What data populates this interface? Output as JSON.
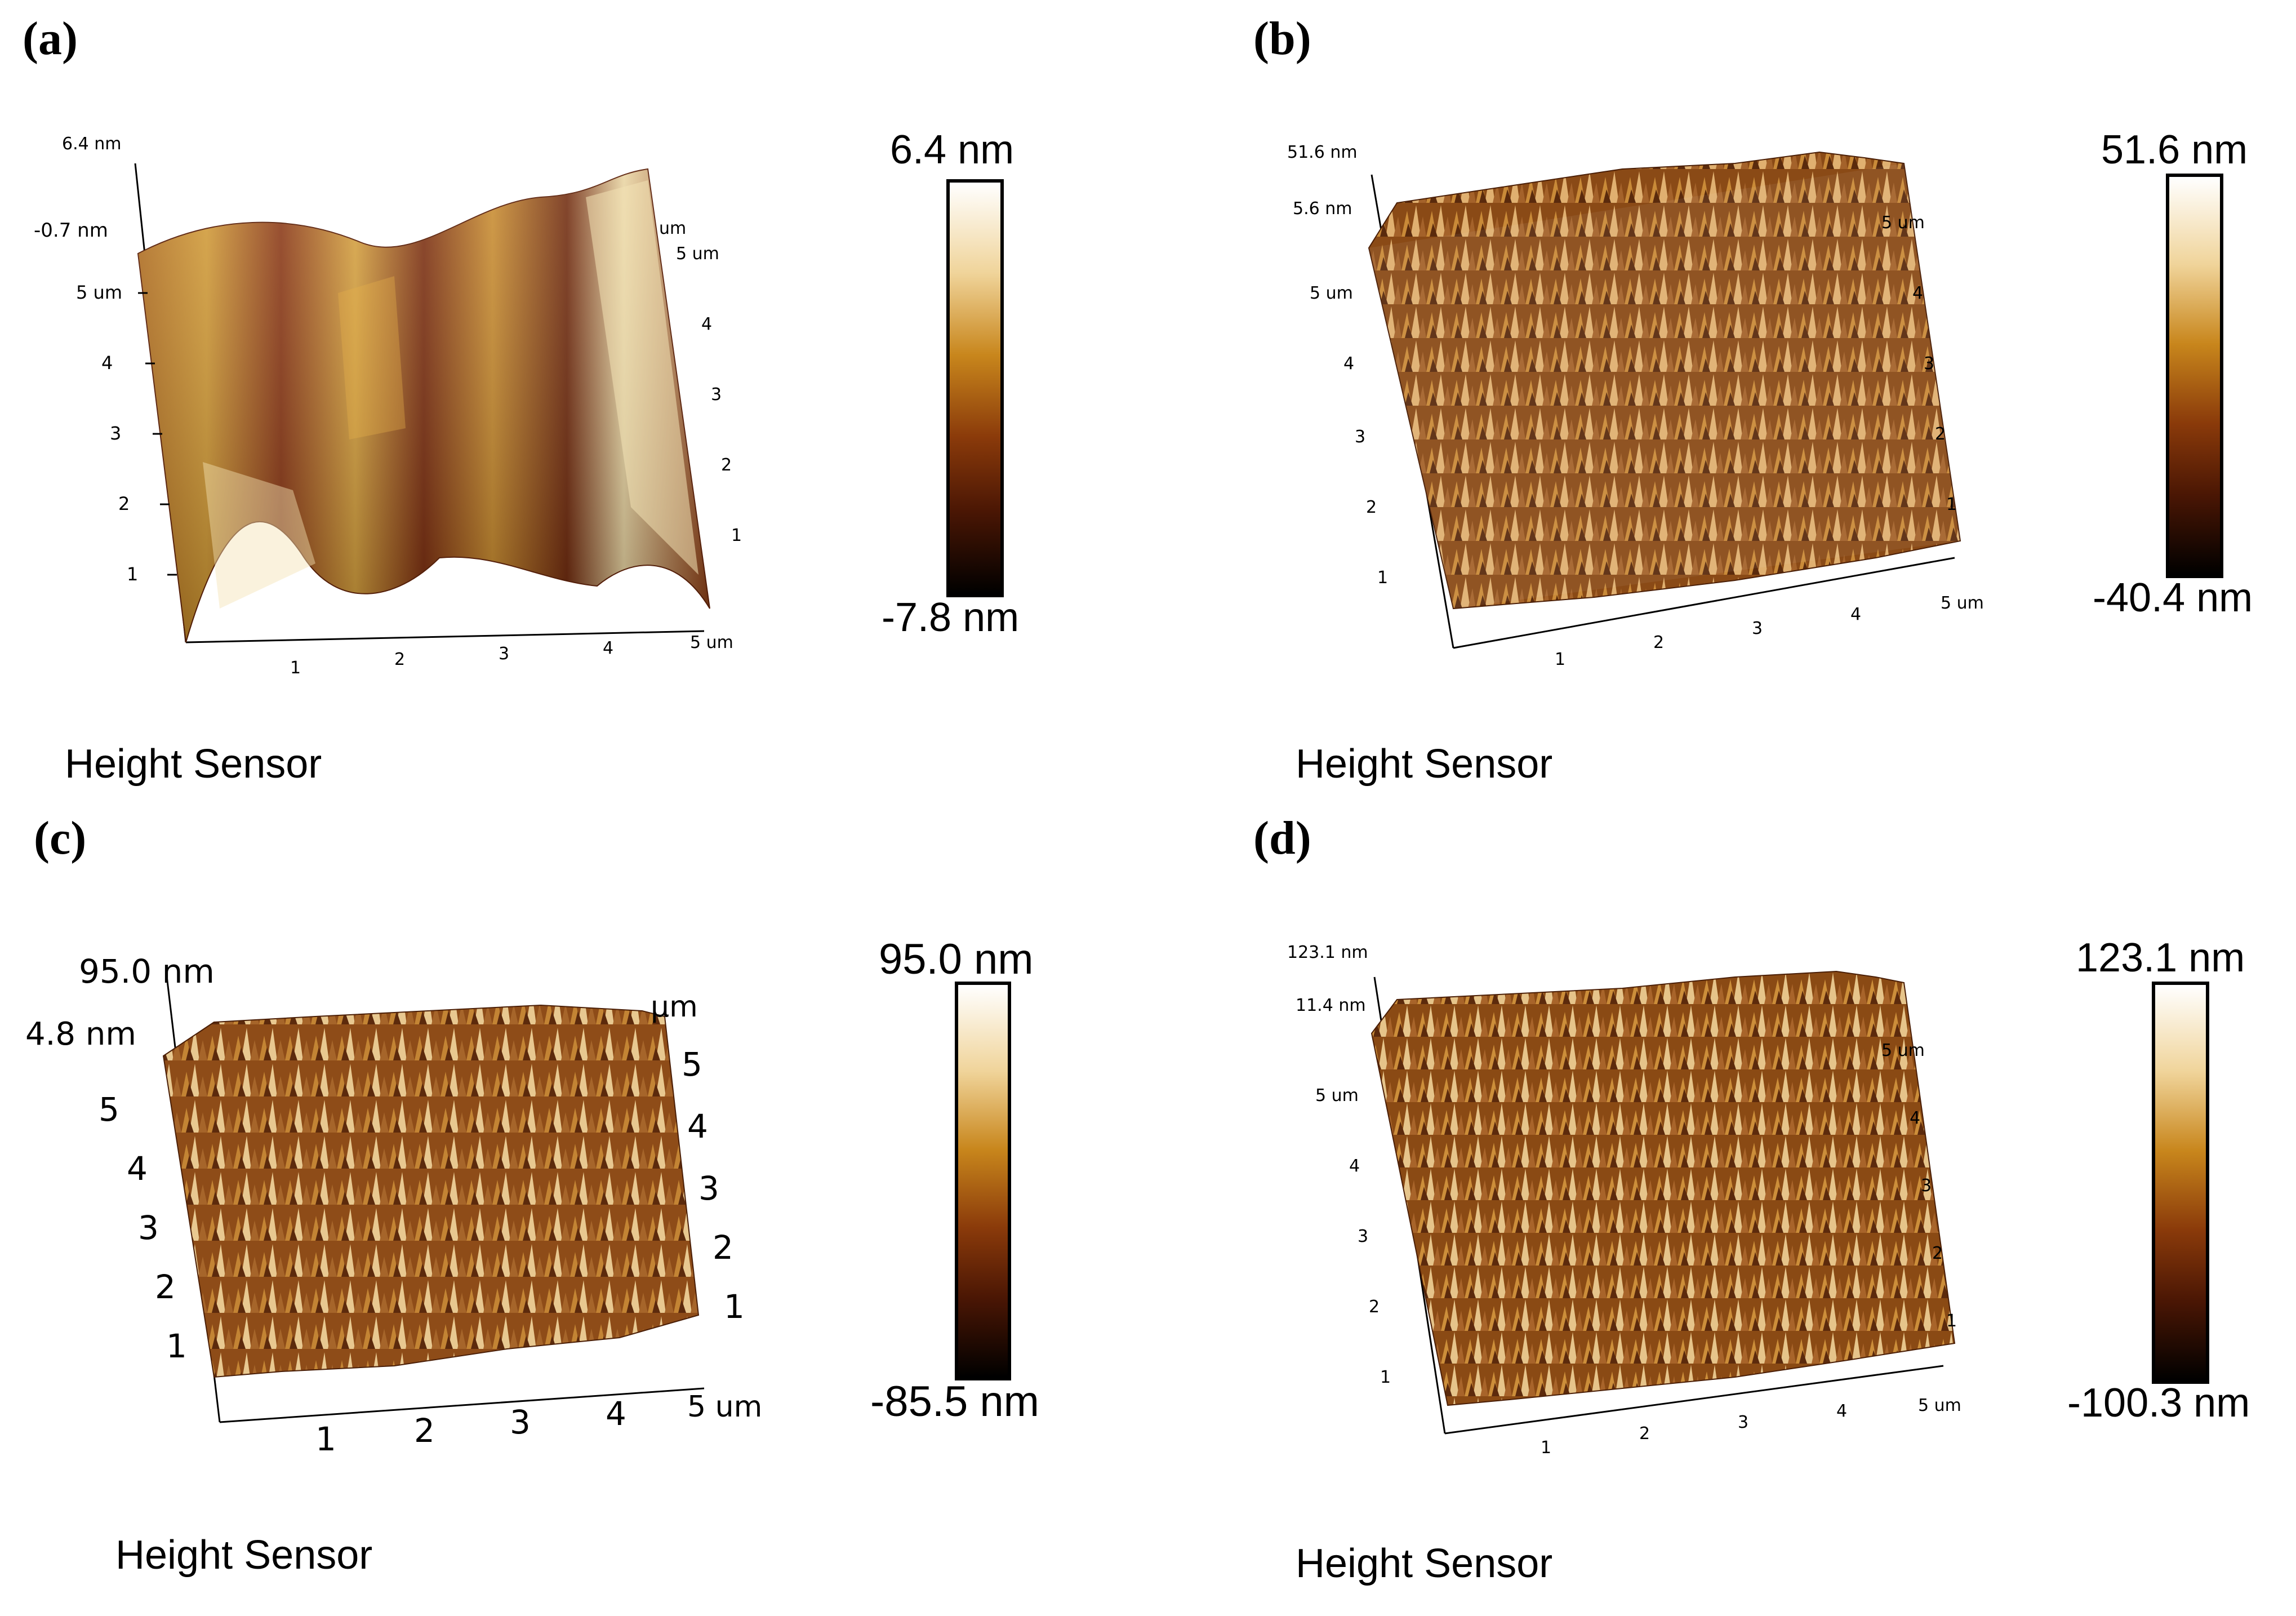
{
  "panels": [
    {
      "letter": "(a)",
      "z_top": "6.4 nm",
      "z_mid": "-0.7 nm",
      "y_ticks": [
        "5 um",
        "4",
        "3",
        "2",
        "1"
      ],
      "right_unit": "um",
      "right_ticks": [
        "5 um",
        "4",
        "3",
        "2",
        "1"
      ],
      "x_ticks": [
        "1",
        "2",
        "3",
        "4",
        "5 um"
      ],
      "cb_max": "6.4 nm",
      "cb_min": "-7.8 nm",
      "sensor": "Height Sensor",
      "surface": "wavy"
    },
    {
      "letter": "(b)",
      "z_top": "51.6 nm",
      "z_mid": "5.6 nm",
      "y_ticks": [
        "5 um",
        "4",
        "3",
        "2",
        "1"
      ],
      "right_unit": "",
      "right_ticks": [
        "5 um",
        "4",
        "3",
        "2",
        "1"
      ],
      "x_ticks": [
        "1",
        "2",
        "3",
        "4",
        "5 um"
      ],
      "cb_max": "51.6 nm",
      "cb_min": "-40.4 nm",
      "sensor": "Height Sensor",
      "surface": "rough"
    },
    {
      "letter": "(c)",
      "z_top": "95.0 nm",
      "z_mid": "4.8 nm",
      "y_ticks": [
        "5",
        "4",
        "3",
        "2",
        "1"
      ],
      "right_unit": "µm",
      "right_ticks": [
        "5",
        "4",
        "3",
        "2",
        "1"
      ],
      "x_ticks": [
        "1",
        "2",
        "3",
        "4",
        "5 um"
      ],
      "cb_max": "95.0 nm",
      "cb_min": "-85.5 nm",
      "sensor": "Height Sensor",
      "surface": "rough"
    },
    {
      "letter": "(d)",
      "z_top": "123.1 nm",
      "z_mid": "11.4 nm",
      "y_ticks": [
        "5 um",
        "4",
        "3",
        "2",
        "1"
      ],
      "right_unit": "",
      "right_ticks": [
        "5 um",
        "4",
        "3",
        "2",
        "1"
      ],
      "x_ticks": [
        "1",
        "2",
        "3",
        "4",
        "5 um"
      ],
      "cb_max": "123.1 nm",
      "cb_min": "-100.3 nm",
      "sensor": "Height Sensor",
      "surface": "rough"
    }
  ]
}
